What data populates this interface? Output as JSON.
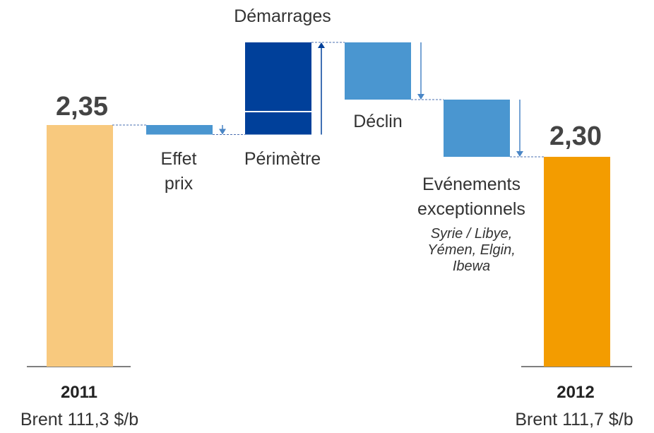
{
  "chart_data": {
    "type": "waterfall",
    "ylim": [
      1.97,
      2.5
    ],
    "start": {
      "name": "2011",
      "subtitle": "Brent 111,3 $/b",
      "value": 2.35,
      "value_label": "2,35",
      "color": "#f8c97e"
    },
    "steps": [
      {
        "name": "Effet prix",
        "value": -0.015,
        "color": "#4a96d0"
      },
      {
        "name": "Périmètre",
        "value": 0.035,
        "color": "#00409a"
      },
      {
        "name": "Démarrages",
        "value": 0.11,
        "color": "#00409a"
      },
      {
        "name": "Déclin",
        "value": -0.09,
        "color": "#4a96d0"
      },
      {
        "name": "Evénements exceptionnels",
        "value": -0.09,
        "color": "#4a96d0",
        "note": "Syrie / Libye, Yémen, Elgin, Ibewa"
      }
    ],
    "end": {
      "name": "2012",
      "subtitle": "Brent 111,7 $/b",
      "value": 2.3,
      "value_label": "2,30",
      "color": "#f39c00"
    }
  }
}
